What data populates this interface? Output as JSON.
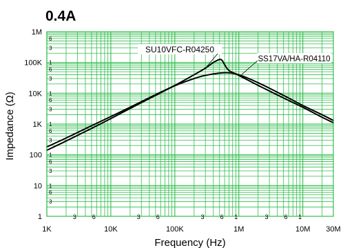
{
  "chart_data": {
    "type": "line",
    "title": "0.4A",
    "xlabel": "Frequency (Hz)",
    "ylabel": "Impedance (Ω)",
    "x_scale": "log",
    "y_scale": "log",
    "xlim": [
      1000,
      30000000
    ],
    "ylim": [
      1,
      1000000
    ],
    "grid": true,
    "grid_color": "#2ebd4a",
    "line_color": "#000000",
    "x_major_ticks": [
      {
        "value": 1000,
        "label": "1K"
      },
      {
        "value": 10000,
        "label": "10K"
      },
      {
        "value": 100000,
        "label": "100K"
      },
      {
        "value": 1000000,
        "label": "1M"
      },
      {
        "value": 10000000,
        "label": "10M"
      },
      {
        "value": 30000000,
        "label": "30M"
      }
    ],
    "x_minor_ticks": [
      {
        "value": 3000,
        "label": "3"
      },
      {
        "value": 6000,
        "label": "6"
      },
      {
        "value": 30000,
        "label": "3"
      },
      {
        "value": 60000,
        "label": "6"
      },
      {
        "value": 300000,
        "label": "3"
      },
      {
        "value": 600000,
        "label": "6"
      },
      {
        "value": 3000000,
        "label": "3"
      },
      {
        "value": 6000000,
        "label": "6"
      }
    ],
    "x_minor_decade_ones": [
      {
        "value": 1000000,
        "label": "1"
      },
      {
        "value": 10000000,
        "label": "1"
      }
    ],
    "y_major_ticks": [
      {
        "value": 1,
        "label": "1"
      },
      {
        "value": 10,
        "label": "10"
      },
      {
        "value": 100,
        "label": "100"
      },
      {
        "value": 1000,
        "label": "1K"
      },
      {
        "value": 10000,
        "label": "10K"
      },
      {
        "value": 100000,
        "label": "100K"
      },
      {
        "value": 1000000,
        "label": "1M"
      }
    ],
    "y_minor_ticks": [
      {
        "value": 3,
        "label": "3"
      },
      {
        "value": 6,
        "label": "6"
      },
      {
        "value": 10,
        "label": "1"
      },
      {
        "value": 30,
        "label": "3"
      },
      {
        "value": 60,
        "label": "6"
      },
      {
        "value": 100,
        "label": "1"
      },
      {
        "value": 300,
        "label": "3"
      },
      {
        "value": 600,
        "label": "6"
      },
      {
        "value": 1000,
        "label": "1"
      },
      {
        "value": 3000,
        "label": "3"
      },
      {
        "value": 6000,
        "label": "6"
      },
      {
        "value": 10000,
        "label": "1"
      },
      {
        "value": 30000,
        "label": "3"
      },
      {
        "value": 60000,
        "label": "6"
      },
      {
        "value": 100000,
        "label": "1"
      },
      {
        "value": 300000,
        "label": "3"
      },
      {
        "value": 600000,
        "label": "6"
      }
    ],
    "series": [
      {
        "name": "SU10VFC-R04250",
        "x": [
          1000,
          2000,
          5000,
          10000,
          20000,
          50000,
          100000,
          200000,
          300000,
          400000,
          500000,
          550000,
          600000,
          700000,
          1000000,
          2000000,
          5000000,
          10000000,
          20000000,
          30000000
        ],
        "y": [
          180,
          350,
          880,
          1750,
          3500,
          9000,
          18000,
          40000,
          65000,
          100000,
          125000,
          115000,
          85000,
          55000,
          38000,
          18000,
          7000,
          3500,
          1650,
          1100
        ]
      },
      {
        "name": "SS17VA/HA-R04110",
        "x": [
          1000,
          2000,
          5000,
          10000,
          20000,
          50000,
          100000,
          200000,
          300000,
          500000,
          700000,
          1000000,
          2000000,
          5000000,
          10000000,
          20000000,
          30000000
        ],
        "y": [
          140,
          280,
          720,
          1500,
          3200,
          8500,
          17500,
          30000,
          38000,
          45000,
          46000,
          40000,
          22000,
          8500,
          4000,
          2000,
          1300
        ]
      }
    ],
    "annotations": [
      {
        "text": "SU10VFC-R04250",
        "series": 0
      },
      {
        "text": "SS17VA/HA-R04110",
        "series": 1
      }
    ]
  }
}
